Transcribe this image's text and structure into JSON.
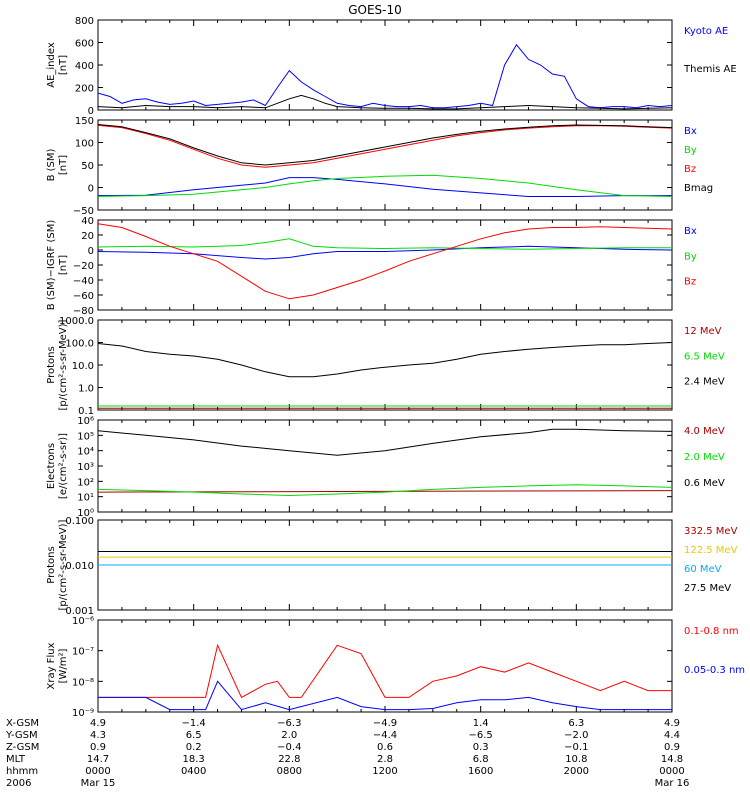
{
  "title": "GOES-10",
  "colors": {
    "black": "#000000",
    "blue": "#0000ff",
    "green": "#00dd00",
    "red": "#ff0000",
    "darkred": "#aa0000",
    "yellow": "#f0c800",
    "cyan": "#00aaff"
  },
  "chart_data": [
    {
      "type": "line",
      "id": "ae",
      "ylabel": [
        "AE_index",
        "[nT]"
      ],
      "ylim": [
        0,
        800
      ],
      "yticks": [
        {
          "v": 0,
          "t": "0"
        },
        {
          "v": 200,
          "t": "200"
        },
        {
          "v": 400,
          "t": "400"
        },
        {
          "v": 600,
          "t": "600"
        },
        {
          "v": 800,
          "t": "800"
        }
      ],
      "series": [
        {
          "name": "Kyoto AE",
          "color": "blue",
          "x": [
            0,
            0.5,
            1,
            1.5,
            2,
            2.5,
            3,
            3.5,
            4,
            4.5,
            5,
            5.5,
            6,
            6.5,
            7,
            7.5,
            8,
            8.5,
            9,
            9.5,
            10,
            10.5,
            11,
            11.5,
            12,
            12.5,
            13,
            13.5,
            14,
            14.5,
            15,
            15.5,
            16,
            16.5,
            17,
            17.5,
            18,
            18.5,
            19,
            19.5,
            20,
            20.5,
            21,
            21.5,
            22,
            22.5,
            23,
            23.5,
            24
          ],
          "y": [
            150,
            120,
            60,
            90,
            100,
            70,
            50,
            60,
            80,
            40,
            50,
            60,
            70,
            90,
            40,
            200,
            350,
            250,
            180,
            120,
            60,
            40,
            30,
            60,
            40,
            30,
            30,
            40,
            20,
            20,
            30,
            40,
            60,
            40,
            400,
            580,
            450,
            400,
            320,
            300,
            100,
            30,
            20,
            30,
            30,
            20,
            40,
            30,
            40
          ]
        },
        {
          "name": "Themis AE",
          "color": "black",
          "x": [
            0,
            1,
            2,
            3,
            4,
            5,
            6,
            7,
            7.5,
            8,
            8.5,
            9,
            9.5,
            10,
            11,
            12,
            13,
            14,
            15,
            16,
            17,
            18,
            19,
            20,
            21,
            22,
            23,
            24
          ],
          "y": [
            30,
            20,
            40,
            30,
            30,
            20,
            30,
            20,
            60,
            100,
            130,
            100,
            60,
            30,
            20,
            15,
            15,
            10,
            10,
            20,
            30,
            40,
            30,
            20,
            15,
            10,
            15,
            20
          ]
        }
      ]
    },
    {
      "type": "line",
      "id": "b",
      "ylabel": [
        "B (SM)",
        "[nT]"
      ],
      "ylim": [
        -50,
        150
      ],
      "yticks": [
        {
          "v": -50,
          "t": "−50"
        },
        {
          "v": 0,
          "t": "0"
        },
        {
          "v": 50,
          "t": "50"
        },
        {
          "v": 100,
          "t": "100"
        },
        {
          "v": 150,
          "t": "150"
        }
      ],
      "series": [
        {
          "name": "Bx",
          "color": "blue",
          "x": [
            0,
            2,
            4,
            6,
            7,
            8,
            9,
            10,
            12,
            14,
            16,
            18,
            20,
            22,
            24
          ],
          "y": [
            -18,
            -17,
            -5,
            5,
            10,
            22,
            22,
            18,
            8,
            -4,
            -12,
            -20,
            -20,
            -18,
            -18
          ]
        },
        {
          "name": "By",
          "color": "green",
          "x": [
            0,
            2,
            4,
            6,
            7,
            8,
            9,
            10,
            12,
            14,
            16,
            18,
            20,
            22,
            24
          ],
          "y": [
            -20,
            -18,
            -15,
            -5,
            0,
            8,
            15,
            20,
            25,
            27,
            20,
            10,
            -5,
            -18,
            -20
          ]
        },
        {
          "name": "Bz",
          "color": "red",
          "x": [
            0,
            1,
            2,
            3,
            4,
            5,
            6,
            7,
            8,
            9,
            10,
            11,
            12,
            13,
            14,
            15,
            16,
            17,
            18,
            19,
            20,
            21,
            22,
            23,
            24
          ],
          "y": [
            138,
            133,
            120,
            105,
            85,
            65,
            50,
            45,
            50,
            55,
            65,
            75,
            85,
            95,
            105,
            115,
            122,
            128,
            132,
            135,
            137,
            137,
            136,
            134,
            132
          ]
        },
        {
          "name": "Bmag",
          "color": "black",
          "x": [
            0,
            1,
            2,
            3,
            4,
            5,
            6,
            7,
            8,
            9,
            10,
            11,
            12,
            13,
            14,
            15,
            16,
            17,
            18,
            19,
            20,
            21,
            22,
            23,
            24
          ],
          "y": [
            140,
            135,
            122,
            108,
            88,
            70,
            55,
            50,
            55,
            60,
            70,
            80,
            90,
            100,
            110,
            118,
            125,
            130,
            134,
            137,
            139,
            138,
            137,
            135,
            133
          ]
        }
      ]
    },
    {
      "type": "line",
      "id": "db",
      "ylabel": [
        "B (SM)−IGRF (SM)",
        "[nT]"
      ],
      "ylim": [
        -80,
        40
      ],
      "yticks": [
        {
          "v": -80,
          "t": "−80"
        },
        {
          "v": -60,
          "t": "−60"
        },
        {
          "v": -40,
          "t": "−40"
        },
        {
          "v": -20,
          "t": "−20"
        },
        {
          "v": 0,
          "t": "0"
        },
        {
          "v": 20,
          "t": "20"
        },
        {
          "v": 40,
          "t": "40"
        }
      ],
      "series": [
        {
          "name": "Bx",
          "color": "blue",
          "x": [
            0,
            2,
            4,
            6,
            7,
            8,
            9,
            10,
            12,
            14,
            16,
            18,
            20,
            22,
            24
          ],
          "y": [
            -2,
            -3,
            -5,
            -10,
            -12,
            -10,
            -5,
            -2,
            -2,
            0,
            3,
            5,
            3,
            1,
            0
          ]
        },
        {
          "name": "By",
          "color": "green",
          "x": [
            0,
            2,
            4,
            6,
            7,
            8,
            9,
            10,
            12,
            14,
            16,
            18,
            20,
            22,
            24
          ],
          "y": [
            4,
            5,
            4,
            6,
            10,
            15,
            5,
            3,
            2,
            3,
            2,
            1,
            2,
            3,
            3
          ]
        },
        {
          "name": "Bz",
          "color": "red",
          "x": [
            0,
            1,
            2,
            3,
            4,
            5,
            6,
            7,
            8,
            9,
            10,
            11,
            12,
            13,
            14,
            15,
            16,
            17,
            18,
            19,
            20,
            21,
            22,
            23,
            24
          ],
          "y": [
            35,
            30,
            18,
            5,
            -5,
            -15,
            -35,
            -55,
            -65,
            -60,
            -50,
            -40,
            -28,
            -15,
            -5,
            5,
            15,
            23,
            28,
            30,
            30,
            31,
            30,
            29,
            28
          ]
        }
      ]
    },
    {
      "type": "line",
      "id": "protons1",
      "log": true,
      "ylabel": [
        "Protons",
        "[p/(cm²-s-sr-MeV)]"
      ],
      "ylim": [
        0.1,
        1000
      ],
      "yticks": [
        {
          "v": 0.1,
          "t": "0.1"
        },
        {
          "v": 1,
          "t": "1.0"
        },
        {
          "v": 10,
          "t": "10.0"
        },
        {
          "v": 100,
          "t": "100.0"
        },
        {
          "v": 1000,
          "t": "1000.0"
        }
      ],
      "series": [
        {
          "name": "12 MeV",
          "color": "darkred",
          "x": [
            0,
            24
          ],
          "y": [
            0.12,
            0.12
          ]
        },
        {
          "name": "6.5 MeV",
          "color": "green",
          "x": [
            0,
            24
          ],
          "y": [
            0.15,
            0.15
          ]
        },
        {
          "name": "2.4 MeV",
          "color": "black",
          "x": [
            0,
            1,
            2,
            3,
            4,
            5,
            6,
            7,
            8,
            9,
            10,
            11,
            12,
            13,
            14,
            15,
            16,
            17,
            18,
            19,
            20,
            21,
            22,
            23,
            24
          ],
          "y": [
            90,
            70,
            40,
            30,
            25,
            18,
            10,
            5,
            3,
            3,
            4,
            6,
            8,
            10,
            12,
            18,
            30,
            40,
            50,
            60,
            70,
            80,
            80,
            90,
            100
          ]
        }
      ]
    },
    {
      "type": "line",
      "id": "electrons",
      "log": true,
      "ylabel": [
        "Electrons",
        "[e/(cm²-s-sr)]"
      ],
      "ylim": [
        1,
        1000000
      ],
      "yticks": [
        {
          "v": 1,
          "t": "10⁰"
        },
        {
          "v": 10,
          "t": "10¹"
        },
        {
          "v": 100,
          "t": "10²"
        },
        {
          "v": 1000,
          "t": "10³"
        },
        {
          "v": 10000,
          "t": "10⁴"
        },
        {
          "v": 100000,
          "t": "10⁵"
        },
        {
          "v": 1000000,
          "t": "10⁶"
        }
      ],
      "series": [
        {
          "name": "4.0 MeV",
          "color": "darkred",
          "x": [
            0,
            24
          ],
          "y": [
            20,
            25
          ]
        },
        {
          "name": "2.0 MeV",
          "color": "green",
          "x": [
            0,
            2,
            4,
            6,
            8,
            10,
            12,
            14,
            16,
            18,
            20,
            22,
            24
          ],
          "y": [
            30,
            25,
            20,
            15,
            12,
            15,
            20,
            30,
            40,
            50,
            60,
            50,
            40
          ]
        },
        {
          "name": "0.6 MeV",
          "color": "black",
          "x": [
            0,
            2,
            4,
            6,
            8,
            10,
            12,
            14,
            16,
            18,
            19,
            20,
            22,
            24
          ],
          "y": [
            200000,
            100000,
            50000,
            20000,
            10000,
            5000,
            10000,
            30000,
            80000,
            150000,
            250000,
            250000,
            200000,
            180000
          ]
        }
      ]
    },
    {
      "type": "line",
      "id": "protons2",
      "log": true,
      "ylabel": [
        "Protons",
        "[p/(cm²-s-sr-MeV)]"
      ],
      "ylim": [
        0.001,
        0.1
      ],
      "yticks": [
        {
          "v": 0.001,
          "t": "0.001"
        },
        {
          "v": 0.01,
          "t": "0.010"
        },
        {
          "v": 0.1,
          "t": "0.100"
        }
      ],
      "series": [
        {
          "name": "332.5 MeV",
          "color": "darkred",
          "x": [
            0,
            24
          ],
          "y": [
            0.02,
            0.02
          ]
        },
        {
          "name": "122.5 MeV",
          "color": "yellow",
          "x": [
            0,
            24
          ],
          "y": [
            0.015,
            0.015
          ]
        },
        {
          "name": "60 MeV",
          "color": "cyan",
          "x": [
            0,
            24
          ],
          "y": [
            0.01,
            0.01
          ]
        },
        {
          "name": "27.5 MeV",
          "color": "black",
          "x": [
            0,
            24
          ],
          "y": [
            0.02,
            0.02
          ]
        }
      ]
    },
    {
      "type": "line",
      "id": "xray",
      "log": true,
      "ylabel": [
        "Xray Flux",
        "[W/m²]"
      ],
      "ylim": [
        1e-09,
        1e-06
      ],
      "yticks": [
        {
          "v": 1e-09,
          "t": "10⁻⁹"
        },
        {
          "v": 1e-08,
          "t": "10⁻⁸"
        },
        {
          "v": 1e-07,
          "t": "10⁻⁷"
        },
        {
          "v": 1e-06,
          "t": "10⁻⁶"
        }
      ],
      "series": [
        {
          "name": "0.1-0.8 nm",
          "color": "red",
          "x": [
            0,
            2,
            3,
            4.5,
            5,
            6,
            7,
            7.5,
            8,
            8.5,
            10,
            11,
            12,
            13,
            14,
            15,
            16,
            17,
            18,
            19,
            20,
            21,
            22,
            23,
            24
          ],
          "y": [
            3e-09,
            3e-09,
            3e-09,
            3e-09,
            1.5e-07,
            3e-09,
            8e-09,
            1e-08,
            3e-09,
            3e-09,
            1.5e-07,
            8e-08,
            3e-09,
            3e-09,
            1e-08,
            1.5e-08,
            3e-08,
            2e-08,
            4e-08,
            2e-08,
            1e-08,
            5e-09,
            1e-08,
            5e-09,
            5e-09
          ]
        },
        {
          "name": "0.05-0.3 nm",
          "color": "blue",
          "x": [
            0,
            2,
            3,
            4.5,
            5,
            6,
            7,
            8,
            10,
            11,
            12,
            13,
            14,
            15,
            16,
            17,
            18,
            19,
            20,
            21,
            22,
            23,
            24
          ],
          "y": [
            3e-09,
            3e-09,
            1.2e-09,
            1.2e-09,
            1e-08,
            1.2e-09,
            2e-09,
            1.2e-09,
            3e-09,
            1.5e-09,
            1.2e-09,
            1.2e-09,
            1.3e-09,
            2e-09,
            2.5e-09,
            2.5e-09,
            3e-09,
            2e-09,
            1.5e-09,
            1.2e-09,
            1.2e-09,
            1.2e-09,
            1.2e-09
          ]
        }
      ]
    }
  ],
  "axis_table": {
    "rows": [
      {
        "label": "X-GSM",
        "values": [
          "4.9",
          "−1.4",
          "−6.3",
          "−4.9",
          "1.4",
          "6.3",
          "4.9"
        ]
      },
      {
        "label": "Y-GSM",
        "values": [
          "4.3",
          "6.5",
          "2.0",
          "−4.4",
          "−6.5",
          "−2.0",
          "4.4"
        ]
      },
      {
        "label": "Z-GSM",
        "values": [
          "0.9",
          "0.2",
          "−0.4",
          "0.6",
          "0.3",
          "−0.1",
          "0.9"
        ]
      },
      {
        "label": "MLT",
        "values": [
          "14.7",
          "18.3",
          "22.8",
          "2.8",
          "6.8",
          "10.8",
          "14.8"
        ]
      },
      {
        "label": "hhmm",
        "values": [
          "0000",
          "0400",
          "0800",
          "1200",
          "1600",
          "2000",
          "0000"
        ]
      },
      {
        "label": "2006",
        "values": [
          "Mar 15",
          "",
          "",
          "",
          "",
          "",
          "Mar 16"
        ]
      }
    ]
  }
}
